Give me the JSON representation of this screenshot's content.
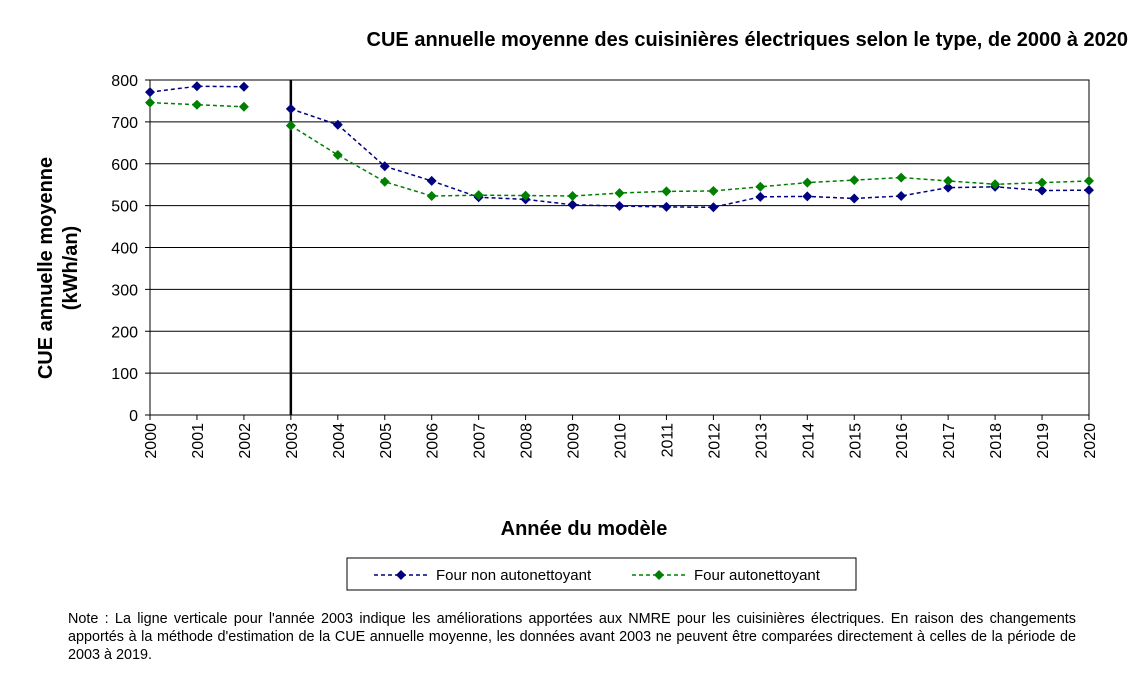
{
  "chart_data": {
    "type": "line",
    "title": "CUE annuelle moyenne des cuisinières électriques selon le type, de 2000 à 2020",
    "xlabel": "Année du modèle",
    "ylabel_line1": "CUE annuelle moyenne",
    "ylabel_line2": "(kWh/an)",
    "ylim": [
      0,
      800
    ],
    "yticks": [
      "0",
      "100",
      "200",
      "300",
      "400",
      "500",
      "600",
      "700",
      "800"
    ],
    "categories": [
      "2000",
      "2001",
      "2002",
      "2003",
      "2004",
      "2005",
      "2006",
      "2007",
      "2008",
      "2009",
      "2010",
      "2011",
      "2012",
      "2013",
      "2014",
      "2015",
      "2016",
      "2017",
      "2018",
      "2019",
      "2020"
    ],
    "vertical_marker_year": "2003",
    "grid": true,
    "legend_position": "bottom",
    "series": [
      {
        "name": "Four non autonettoyant",
        "color": "#000080",
        "values": [
          771,
          785,
          784,
          731,
          693,
          594,
          559,
          520,
          515,
          502,
          499,
          497,
          496,
          521,
          522,
          517,
          523,
          543,
          545,
          536,
          537
        ]
      },
      {
        "name": "Four autonettoyant",
        "color": "#008000",
        "values": [
          746,
          741,
          736,
          691,
          621,
          557,
          523,
          525,
          524,
          523,
          530,
          534,
          535,
          545,
          555,
          561,
          567,
          559,
          551,
          555,
          559
        ]
      }
    ]
  },
  "note": "Note : La ligne verticale pour l'année 2003 indique les améliorations apportées aux NMRE pour les cuisinières électriques. En raison des changements apportés à la méthode d'estimation de la CUE annuelle moyenne, les données avant 2003 ne peuvent être comparées directement à celles de la période de 2003 à 2019."
}
